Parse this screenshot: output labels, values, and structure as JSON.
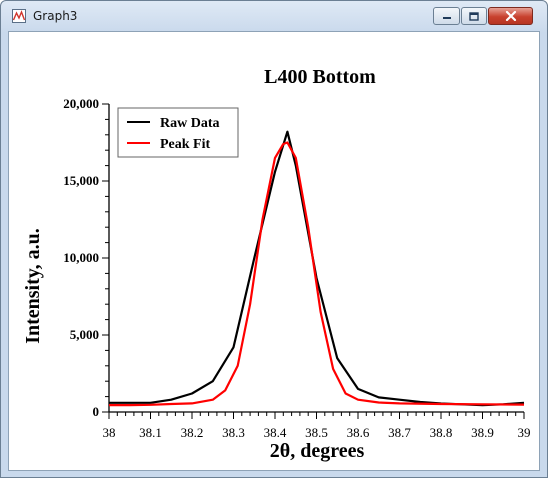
{
  "window": {
    "title": "Graph3"
  },
  "chart_data": {
    "type": "line",
    "title": "L400 Bottom",
    "xlabel": "2θ, degrees",
    "ylabel": "Intensity, a.u.",
    "xlim": [
      38,
      39
    ],
    "ylim": [
      0,
      20000
    ],
    "x_ticks": [
      "38",
      "38.1",
      "38.2",
      "38.3",
      "38.4",
      "38.5",
      "38.6",
      "38.7",
      "38.8",
      "38.9",
      "39"
    ],
    "y_ticks": [
      "0",
      "5,000",
      "10,000",
      "15,000",
      "20,000"
    ],
    "grid": false,
    "legend_position": "top-left",
    "series": [
      {
        "name": "Raw Data",
        "color": "#000000",
        "x": [
          38.0,
          38.05,
          38.1,
          38.15,
          38.2,
          38.25,
          38.3,
          38.35,
          38.4,
          38.43,
          38.45,
          38.5,
          38.55,
          38.6,
          38.65,
          38.7,
          38.75,
          38.8,
          38.85,
          38.9,
          38.95,
          39.0
        ],
        "y": [
          600,
          600,
          600,
          800,
          1200,
          2000,
          4200,
          10000,
          15600,
          18200,
          16000,
          8700,
          3500,
          1500,
          950,
          800,
          650,
          550,
          500,
          450,
          500,
          600
        ]
      },
      {
        "name": "Peak Fit",
        "color": "#ff0000",
        "x": [
          38.0,
          38.05,
          38.1,
          38.15,
          38.2,
          38.25,
          38.28,
          38.31,
          38.34,
          38.37,
          38.4,
          38.42,
          38.43,
          38.45,
          38.48,
          38.51,
          38.54,
          38.57,
          38.6,
          38.65,
          38.7,
          38.8,
          38.9,
          39.0
        ],
        "y": [
          450,
          450,
          470,
          520,
          560,
          800,
          1400,
          3000,
          7000,
          12500,
          16500,
          17400,
          17500,
          16500,
          12000,
          6500,
          2800,
          1200,
          800,
          620,
          560,
          520,
          500,
          480
        ]
      }
    ]
  }
}
